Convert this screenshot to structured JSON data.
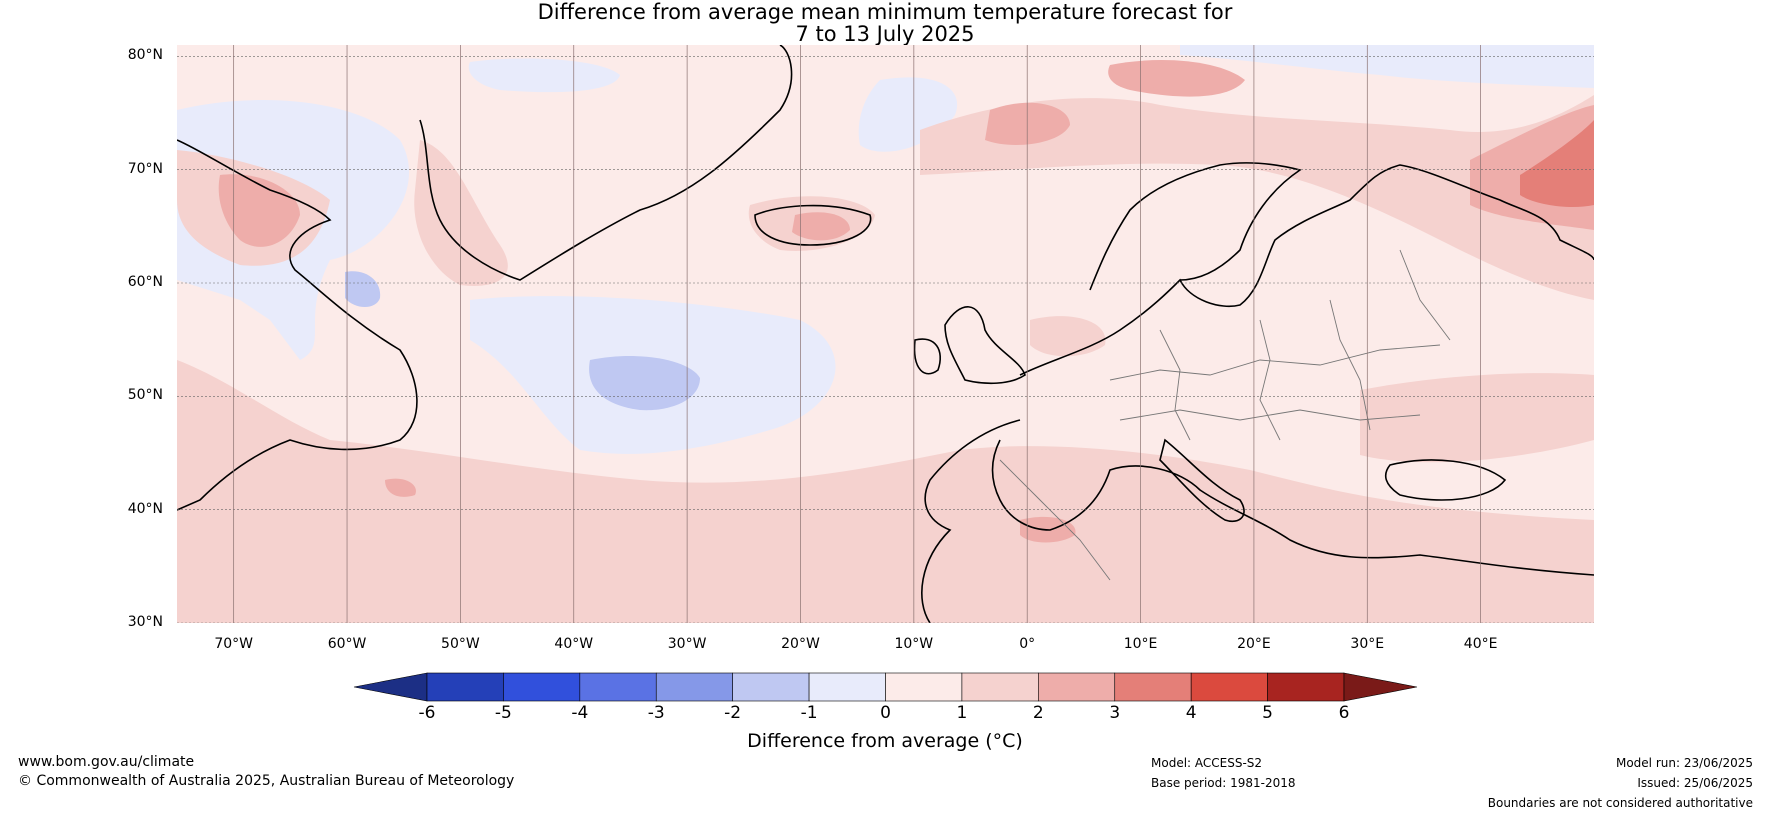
{
  "title_line1": "Difference from average mean minimum temperature forecast for",
  "title_line2": "7 to 13 July 2025",
  "map": {
    "projection": "equirectangular",
    "lon_range": [
      -75,
      50
    ],
    "lat_range": [
      30,
      81
    ],
    "lat_labels": [
      "80°N",
      "70°N",
      "60°N",
      "50°N",
      "40°N",
      "30°N"
    ],
    "lat_values": [
      80,
      70,
      60,
      50,
      40,
      30
    ],
    "lon_labels": [
      "70°W",
      "60°W",
      "50°W",
      "40°W",
      "30°W",
      "20°W",
      "10°W",
      "0°",
      "10°E",
      "20°E",
      "30°E",
      "40°E"
    ],
    "lon_values": [
      -70,
      -60,
      -50,
      -40,
      -30,
      -20,
      -10,
      0,
      10,
      20,
      30,
      40
    ],
    "gridlines": true,
    "background_colour": "#fcebe9"
  },
  "colorbar": {
    "ticks": [
      "-6",
      "-5",
      "-4",
      "-3",
      "-2",
      "-1",
      "0",
      "1",
      "2",
      "3",
      "4",
      "5",
      "6"
    ],
    "colours": [
      "#1c2f85",
      "#2440b8",
      "#3150dc",
      "#5a72e4",
      "#8598e8",
      "#bfc8f2",
      "#e8ebfb",
      "#fcebe9",
      "#f5d2cf",
      "#eeadaa",
      "#e47f78",
      "#db4a3e",
      "#a82420",
      "#7a1a18"
    ],
    "label": "Difference from average (°C)"
  },
  "footer": {
    "website": "www.bom.gov.au/climate",
    "copyright": "© Commonwealth of Australia 2025, Australian Bureau of Meteorology",
    "model": "Model: ACCESS-S2",
    "base_period": "Base period: 1981-2018",
    "model_run": "Model run: 23/06/2025",
    "issued": "Issued: 25/06/2025",
    "disclaimer": "Boundaries are not considered authoritative"
  }
}
